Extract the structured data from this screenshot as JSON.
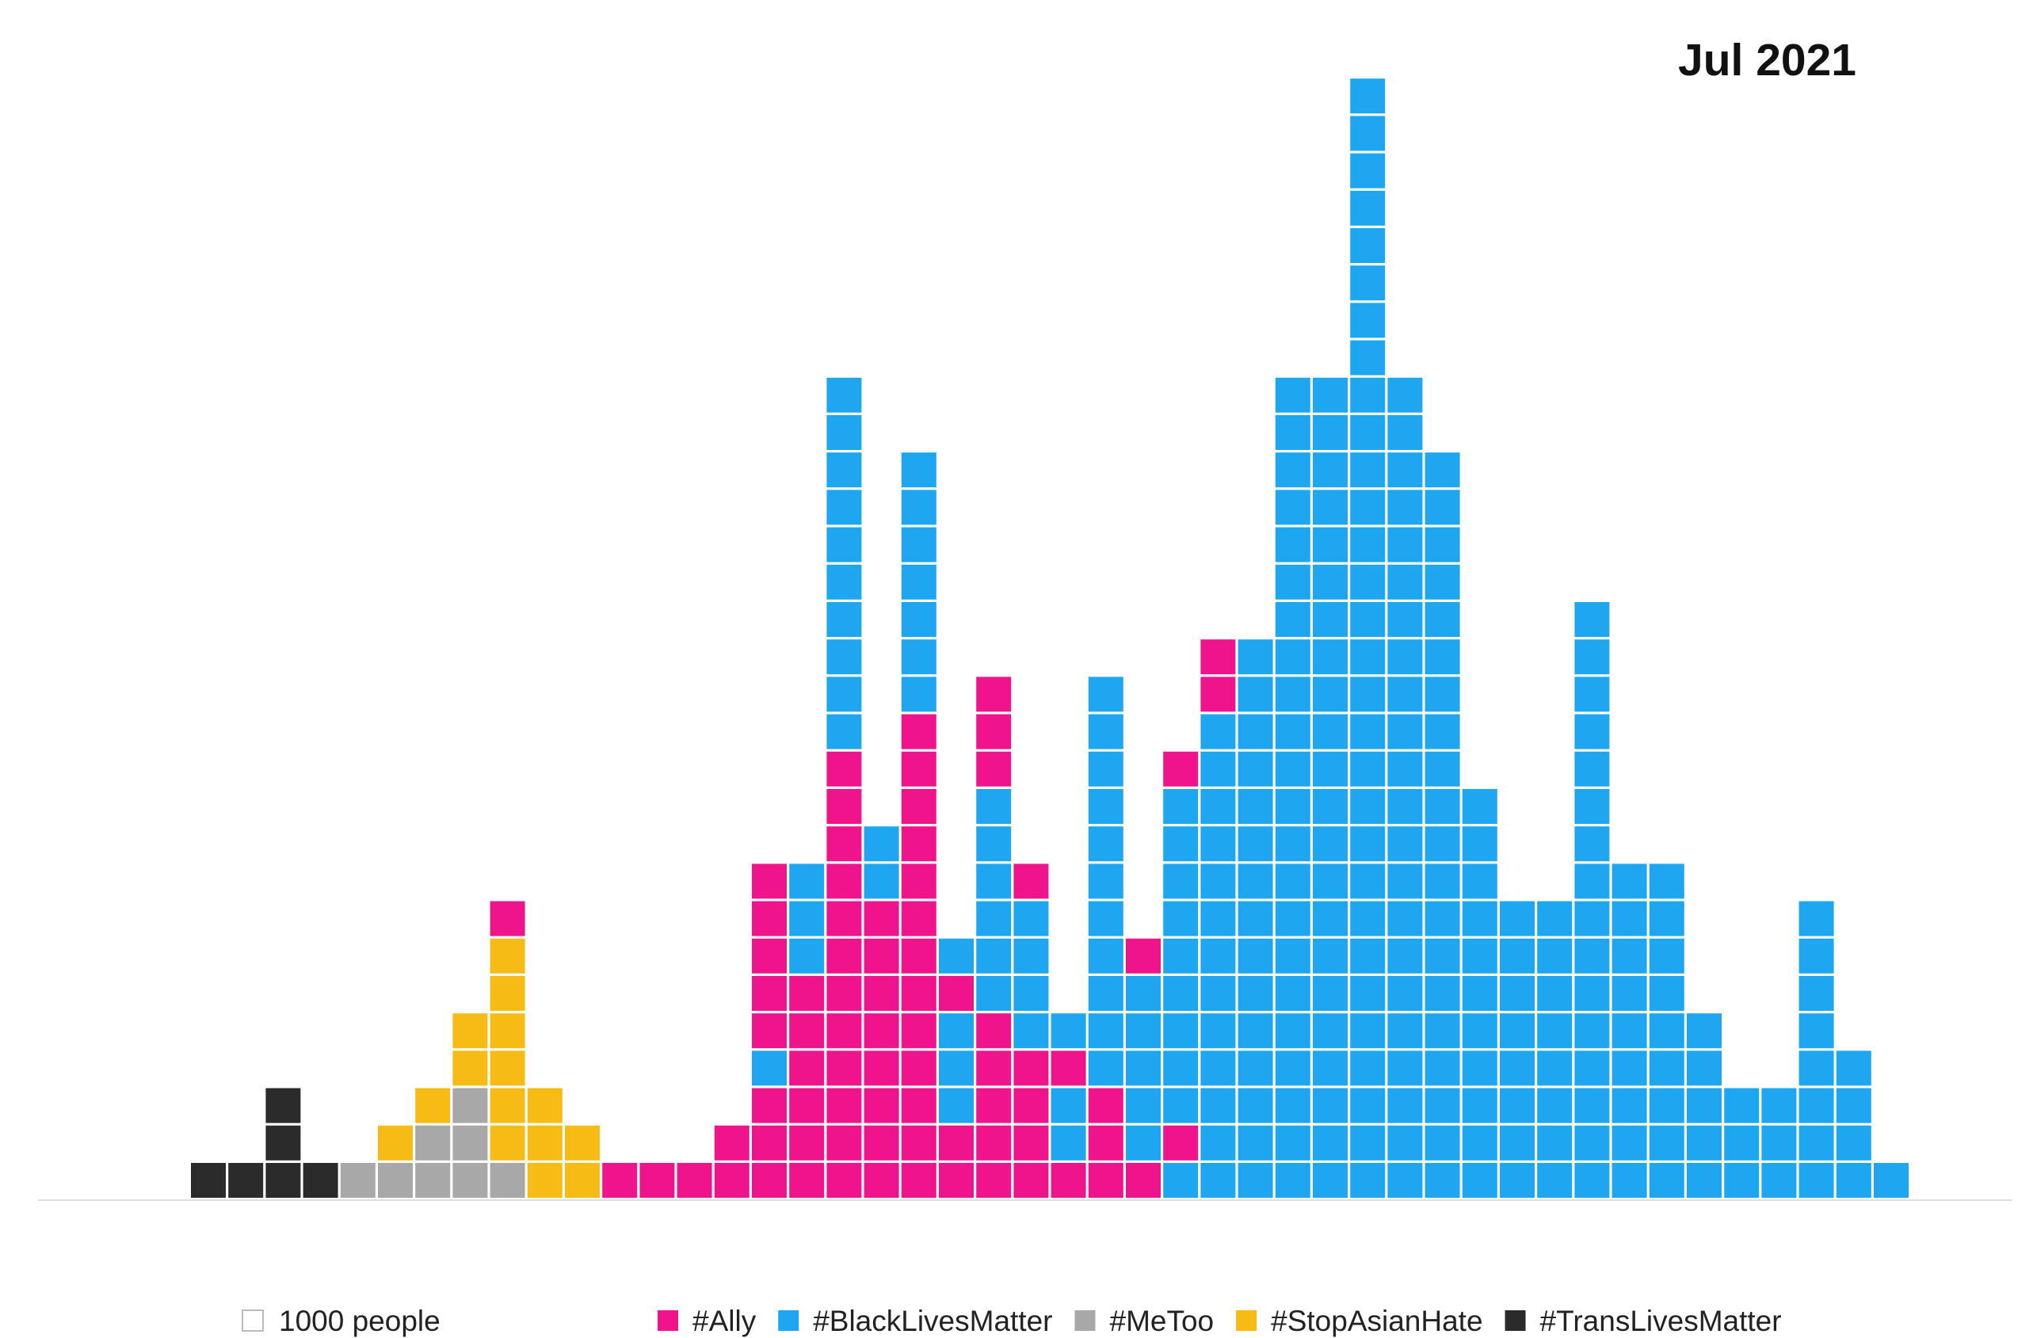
{
  "colors": {
    "ally": "#f0148c",
    "blm": "#1ea6f0",
    "metoo": "#a8a8a8",
    "stopasianhate": "#f7bb16",
    "translivesmatter": "#2b2b2b",
    "unit_outline": "#bbbbbb",
    "baseline": "#dddddd"
  },
  "chart_data": {
    "type": "unit-histogram",
    "title": "Jul 2021",
    "unit": {
      "label": "1000 people",
      "value": 1000
    },
    "legend": [
      {
        "key": "ally",
        "label": "#Ally"
      },
      {
        "key": "blm",
        "label": "#BlackLivesMatter"
      },
      {
        "key": "metoo",
        "label": "#MeToo"
      },
      {
        "key": "stopasianhate",
        "label": "#StopAsianHate"
      },
      {
        "key": "translivesmatter",
        "label": "#TransLivesMatter"
      }
    ],
    "columns": [
      [
        "translivesmatter"
      ],
      [
        "translivesmatter"
      ],
      [
        "translivesmatter",
        "translivesmatter",
        "translivesmatter"
      ],
      [
        "translivesmatter"
      ],
      [
        "metoo"
      ],
      [
        "metoo",
        "stopasianhate"
      ],
      [
        "metoo",
        "metoo",
        "stopasianhate"
      ],
      [
        "metoo",
        "metoo",
        "metoo",
        "stopasianhate",
        "stopasianhate"
      ],
      [
        "metoo",
        "stopasianhate",
        "stopasianhate",
        "stopasianhate",
        "stopasianhate",
        "stopasianhate",
        "stopasianhate",
        "ally"
      ],
      [
        "stopasianhate",
        "stopasianhate",
        "stopasianhate"
      ],
      [
        "stopasianhate",
        "stopasianhate"
      ],
      [
        "ally"
      ],
      [
        "ally"
      ],
      [
        "ally"
      ],
      [
        "ally",
        "ally"
      ],
      [
        "ally",
        "ally",
        "ally",
        "blm",
        "ally",
        "ally",
        "ally",
        "ally",
        "ally"
      ],
      [
        "ally",
        "ally",
        "ally",
        "ally",
        "ally",
        "ally",
        "blm",
        "blm",
        "blm"
      ],
      [
        "ally",
        "ally",
        "ally",
        "ally",
        "ally",
        "ally",
        "ally",
        "ally",
        "ally",
        "ally",
        "ally",
        "ally",
        "blm",
        "blm",
        "blm",
        "blm",
        "blm",
        "blm",
        "blm",
        "blm",
        "blm",
        "blm"
      ],
      [
        "ally",
        "ally",
        "ally",
        "ally",
        "ally",
        "ally",
        "ally",
        "ally",
        "blm",
        "blm"
      ],
      [
        "ally",
        "ally",
        "ally",
        "ally",
        "ally",
        "ally",
        "ally",
        "ally",
        "ally",
        "ally",
        "ally",
        "ally",
        "ally",
        "blm",
        "blm",
        "blm",
        "blm",
        "blm",
        "blm",
        "blm"
      ],
      [
        "ally",
        "ally",
        "blm",
        "blm",
        "blm",
        "ally",
        "blm"
      ],
      [
        "ally",
        "ally",
        "ally",
        "ally",
        "ally",
        "blm",
        "blm",
        "blm",
        "blm",
        "blm",
        "blm",
        "ally",
        "ally",
        "ally"
      ],
      [
        "ally",
        "ally",
        "ally",
        "ally",
        "blm",
        "blm",
        "blm",
        "blm",
        "ally"
      ],
      [
        "ally",
        "blm",
        "blm",
        "ally",
        "blm"
      ],
      [
        "ally",
        "ally",
        "ally",
        "blm",
        "blm",
        "blm",
        "blm",
        "blm",
        "blm",
        "blm",
        "blm",
        "blm",
        "blm",
        "blm"
      ],
      [
        "ally",
        "blm",
        "blm",
        "blm",
        "blm",
        "blm",
        "ally"
      ],
      [
        "blm",
        "ally",
        "blm",
        "blm",
        "blm",
        "blm",
        "blm",
        "blm",
        "blm",
        "blm",
        "blm",
        "ally"
      ],
      [
        "blm",
        "blm",
        "blm",
        "blm",
        "blm",
        "blm",
        "blm",
        "blm",
        "blm",
        "blm",
        "blm",
        "blm",
        "blm",
        "ally",
        "ally"
      ],
      [
        "blm",
        "blm",
        "blm",
        "blm",
        "blm",
        "blm",
        "blm",
        "blm",
        "blm",
        "blm",
        "blm",
        "blm",
        "blm",
        "blm",
        "blm"
      ],
      [
        "blm",
        "blm",
        "blm",
        "blm",
        "blm",
        "blm",
        "blm",
        "blm",
        "blm",
        "blm",
        "blm",
        "blm",
        "blm",
        "blm",
        "blm",
        "blm",
        "blm",
        "blm",
        "blm",
        "blm",
        "blm",
        "blm"
      ],
      [
        "blm",
        "blm",
        "blm",
        "blm",
        "blm",
        "blm",
        "blm",
        "blm",
        "blm",
        "blm",
        "blm",
        "blm",
        "blm",
        "blm",
        "blm",
        "blm",
        "blm",
        "blm",
        "blm",
        "blm",
        "blm",
        "blm"
      ],
      [
        "blm",
        "blm",
        "blm",
        "blm",
        "blm",
        "blm",
        "blm",
        "blm",
        "blm",
        "blm",
        "blm",
        "blm",
        "blm",
        "blm",
        "blm",
        "blm",
        "blm",
        "blm",
        "blm",
        "blm",
        "blm",
        "blm",
        "blm",
        "blm",
        "blm",
        "blm",
        "blm",
        "blm",
        "blm",
        "blm"
      ],
      [
        "blm",
        "blm",
        "blm",
        "blm",
        "blm",
        "blm",
        "blm",
        "blm",
        "blm",
        "blm",
        "blm",
        "blm",
        "blm",
        "blm",
        "blm",
        "blm",
        "blm",
        "blm",
        "blm",
        "blm",
        "blm",
        "blm"
      ],
      [
        "blm",
        "blm",
        "blm",
        "blm",
        "blm",
        "blm",
        "blm",
        "blm",
        "blm",
        "blm",
        "blm",
        "blm",
        "blm",
        "blm",
        "blm",
        "blm",
        "blm",
        "blm",
        "blm",
        "blm"
      ],
      [
        "blm",
        "blm",
        "blm",
        "blm",
        "blm",
        "blm",
        "blm",
        "blm",
        "blm",
        "blm",
        "blm"
      ],
      [
        "blm",
        "blm",
        "blm",
        "blm",
        "blm",
        "blm",
        "blm",
        "blm"
      ],
      [
        "blm",
        "blm",
        "blm",
        "blm",
        "blm",
        "blm",
        "blm",
        "blm"
      ],
      [
        "blm",
        "blm",
        "blm",
        "blm",
        "blm",
        "blm",
        "blm",
        "blm",
        "blm",
        "blm",
        "blm",
        "blm",
        "blm",
        "blm",
        "blm",
        "blm"
      ],
      [
        "blm",
        "blm",
        "blm",
        "blm",
        "blm",
        "blm",
        "blm",
        "blm",
        "blm"
      ],
      [
        "blm",
        "blm",
        "blm",
        "blm",
        "blm",
        "blm",
        "blm",
        "blm",
        "blm"
      ],
      [
        "blm",
        "blm",
        "blm",
        "blm",
        "blm"
      ],
      [
        "blm",
        "blm",
        "blm"
      ],
      [
        "blm",
        "blm",
        "blm"
      ],
      [
        "blm",
        "blm",
        "blm",
        "blm",
        "blm",
        "blm",
        "blm",
        "blm"
      ],
      [
        "blm",
        "blm",
        "blm",
        "blm"
      ],
      [
        "blm"
      ]
    ]
  }
}
